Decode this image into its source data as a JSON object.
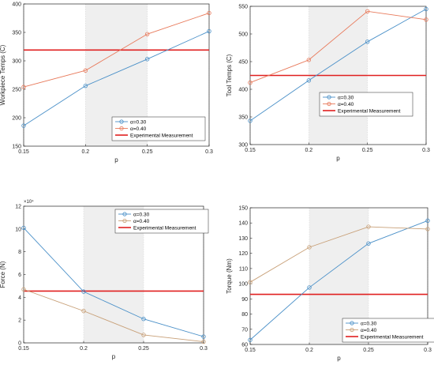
{
  "colors": {
    "series_a": "#4a90c8",
    "series_b": "#e8795a",
    "series_c": "#c8a078",
    "experimental": "#e02020",
    "shade": "#efefef",
    "grid": "#d9d9d9"
  },
  "chart_data": [
    {
      "type": "line",
      "xlabel": "p",
      "ylabel": "Workpiece Temps (C)",
      "ylim": [
        150,
        400
      ],
      "xlim": [
        0.15,
        0.3
      ],
      "x": [
        0.15,
        0.2,
        0.25,
        0.3
      ],
      "xticks": [
        "0.15",
        "0.2",
        "0.25",
        "0.3"
      ],
      "yticks": [
        "150",
        "200",
        "250",
        "300",
        "350",
        "400"
      ],
      "yticks_values": [
        150,
        200,
        250,
        300,
        350,
        400
      ],
      "exponent_label": "",
      "shaded_x": [
        0.2,
        0.25
      ],
      "grid": true,
      "legend_position": "bottom-right",
      "series": [
        {
          "name": "α=0.30",
          "color_key": "series_a",
          "values": [
            186,
            256,
            303,
            352
          ]
        },
        {
          "name": "α=0.40",
          "color_key": "series_b",
          "values": [
            254,
            283,
            347,
            384
          ]
        }
      ],
      "experimental": {
        "name": "Experimental Measurement",
        "value": 319
      }
    },
    {
      "type": "line",
      "xlabel": "p",
      "ylabel": "Tool Temps (C)",
      "ylim": [
        300,
        550
      ],
      "xlim": [
        0.15,
        0.3
      ],
      "x": [
        0.15,
        0.2,
        0.25,
        0.3
      ],
      "xticks": [
        "0.15",
        "0.2",
        "0.25",
        "0.3"
      ],
      "yticks": [
        "300",
        "350",
        "400",
        "450",
        "500",
        "550"
      ],
      "yticks_values": [
        300,
        350,
        400,
        450,
        500,
        550
      ],
      "exponent_label": "",
      "shaded_x": [
        0.2,
        0.25
      ],
      "grid": true,
      "legend_position": "bottom-right",
      "series": [
        {
          "name": "α=0.30",
          "color_key": "series_a",
          "values": [
            343,
            416,
            486,
            545
          ]
        },
        {
          "name": "α=0.40",
          "color_key": "series_b",
          "values": [
            412,
            453,
            541,
            526
          ]
        }
      ],
      "experimental": {
        "name": "Experimental Measurement",
        "value": 425
      }
    },
    {
      "type": "line",
      "xlabel": "p",
      "ylabel": "Force (N)",
      "ylim": [
        0,
        120000
      ],
      "xlim": [
        0.15,
        0.3
      ],
      "x": [
        0.15,
        0.2,
        0.25,
        0.3
      ],
      "xticks": [
        "0.15",
        "0.2",
        "0.25",
        "0.3"
      ],
      "yticks": [
        "0",
        "2",
        "4",
        "6",
        "8",
        "10",
        "12"
      ],
      "yticks_values": [
        0,
        20000,
        40000,
        60000,
        80000,
        100000,
        120000
      ],
      "exponent_label": "×10⁴",
      "shaded_x": [
        0.2,
        0.25
      ],
      "grid": true,
      "legend_position": "top-right",
      "series": [
        {
          "name": "α=0.30",
          "color_key": "series_a",
          "values": [
            101000,
            45000,
            21000,
            5500
          ]
        },
        {
          "name": "α=0.40",
          "color_key": "series_c",
          "values": [
            47000,
            28000,
            7000,
            1000
          ]
        }
      ],
      "experimental": {
        "name": "Experimental Measurement",
        "value": 45500
      }
    },
    {
      "type": "line",
      "xlabel": "p",
      "ylabel": "Torque (Nm)",
      "ylim": [
        60,
        150
      ],
      "xlim": [
        0.15,
        0.3
      ],
      "x": [
        0.15,
        0.2,
        0.25,
        0.3
      ],
      "xticks": [
        "0.15",
        "0.2",
        "0.25",
        "0.3"
      ],
      "yticks": [
        "60",
        "70",
        "80",
        "90",
        "100",
        "110",
        "120",
        "130",
        "140",
        "150"
      ],
      "yticks_values": [
        60,
        70,
        80,
        90,
        100,
        110,
        120,
        130,
        140,
        150
      ],
      "exponent_label": "",
      "shaded_x": [
        0.2,
        0.25
      ],
      "grid": true,
      "legend_position": "bottom-right",
      "series": [
        {
          "name": "α=0.30",
          "color_key": "series_a",
          "values": [
            63,
            97.5,
            126.5,
            141.5
          ]
        },
        {
          "name": "α=0.40",
          "color_key": "series_c",
          "values": [
            101,
            124,
            137.5,
            136
          ]
        }
      ],
      "experimental": {
        "name": "Experimental Measurement",
        "value": 93
      }
    }
  ]
}
